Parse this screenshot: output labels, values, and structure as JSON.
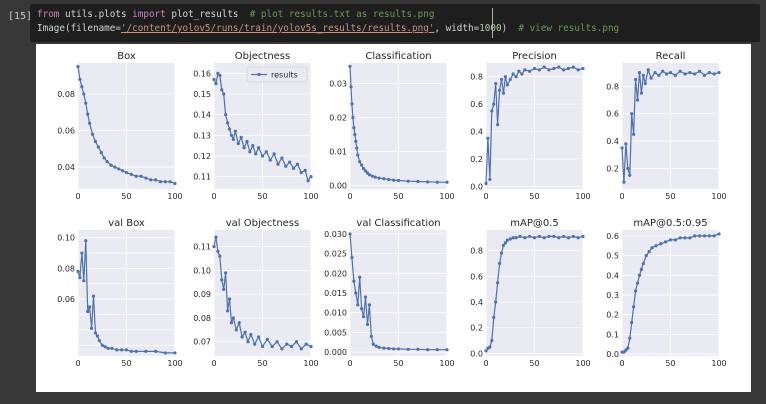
{
  "cell": {
    "prompt": "[15]",
    "line1": {
      "kw1": "from",
      "mod": " utils.plots ",
      "kw2": "import",
      "fn": " plot_results  ",
      "comment": "# plot results.txt as results.png"
    },
    "line2": {
      "pre": "Image(filename=",
      "path": "'/content/yolov5/runs/train/yolov5s_results/results.png'",
      "mid": ", width=",
      "width": "1000",
      "post": ")  ",
      "comment": "# view results.png"
    }
  },
  "colors": {
    "line": "#4c72b0",
    "plot_bg": "#eaeaf2",
    "grid": "#ffffff"
  },
  "legend_label": "results",
  "chart_data": [
    {
      "type": "line",
      "title": "Box",
      "xlim": [
        0,
        100
      ],
      "ylim": [
        0.028,
        0.097
      ],
      "xticks": [
        0,
        50,
        100
      ],
      "yticks": [
        0.04,
        0.06,
        0.08
      ],
      "ytick_labels": [
        "0.04",
        "0.06",
        "0.08"
      ],
      "x": [
        0,
        2,
        4,
        6,
        8,
        10,
        12,
        15,
        18,
        21,
        24,
        27,
        30,
        34,
        38,
        42,
        46,
        50,
        55,
        60,
        65,
        70,
        75,
        80,
        85,
        90,
        95,
        100
      ],
      "y": [
        0.095,
        0.088,
        0.084,
        0.08,
        0.075,
        0.069,
        0.064,
        0.058,
        0.054,
        0.051,
        0.048,
        0.045,
        0.043,
        0.041,
        0.04,
        0.039,
        0.038,
        0.037,
        0.036,
        0.035,
        0.035,
        0.034,
        0.033,
        0.033,
        0.032,
        0.032,
        0.032,
        0.031
      ]
    },
    {
      "type": "line",
      "title": "Objectness",
      "xlim": [
        0,
        100
      ],
      "ylim": [
        0.104,
        0.165
      ],
      "legend": "results",
      "xticks": [
        0,
        50,
        100
      ],
      "yticks": [
        0.11,
        0.12,
        0.13,
        0.14,
        0.15,
        0.16
      ],
      "ytick_labels": [
        "0.11",
        "0.12",
        "0.13",
        "0.14",
        "0.15",
        "0.16"
      ],
      "x": [
        0,
        2,
        4,
        6,
        8,
        10,
        12,
        14,
        16,
        18,
        20,
        22,
        25,
        28,
        31,
        34,
        37,
        40,
        43,
        46,
        50,
        54,
        58,
        62,
        66,
        70,
        74,
        78,
        82,
        86,
        90,
        94,
        97,
        100
      ],
      "y": [
        0.157,
        0.155,
        0.16,
        0.159,
        0.152,
        0.15,
        0.14,
        0.136,
        0.133,
        0.13,
        0.128,
        0.132,
        0.126,
        0.129,
        0.124,
        0.127,
        0.122,
        0.125,
        0.121,
        0.124,
        0.12,
        0.122,
        0.118,
        0.121,
        0.116,
        0.119,
        0.115,
        0.117,
        0.114,
        0.116,
        0.112,
        0.113,
        0.108,
        0.11
      ]
    },
    {
      "type": "line",
      "title": "Classification",
      "xlim": [
        0,
        100
      ],
      "ylim": [
        -0.001,
        0.036
      ],
      "xticks": [
        0,
        50,
        100
      ],
      "yticks": [
        0.0,
        0.01,
        0.02,
        0.03
      ],
      "ytick_labels": [
        "0.00",
        "0.01",
        "0.02",
        "0.03"
      ],
      "x": [
        0,
        1,
        2,
        3,
        4,
        5,
        6,
        7,
        8,
        10,
        12,
        14,
        16,
        18,
        20,
        23,
        26,
        30,
        35,
        40,
        45,
        50,
        60,
        70,
        80,
        90,
        100
      ],
      "y": [
        0.035,
        0.029,
        0.024,
        0.02,
        0.017,
        0.015,
        0.013,
        0.011,
        0.009,
        0.007,
        0.006,
        0.005,
        0.0043,
        0.0037,
        0.0032,
        0.0028,
        0.0025,
        0.0022,
        0.002,
        0.0018,
        0.0016,
        0.0015,
        0.0013,
        0.0012,
        0.0011,
        0.001,
        0.001
      ]
    },
    {
      "type": "line",
      "title": "Precision",
      "xlim": [
        0,
        100
      ],
      "ylim": [
        -0.02,
        0.9
      ],
      "xticks": [
        0,
        50,
        100
      ],
      "yticks": [
        0.0,
        0.2,
        0.4,
        0.6,
        0.8
      ],
      "ytick_labels": [
        "0.0",
        "0.2",
        "0.4",
        "0.6",
        "0.8"
      ],
      "x": [
        0,
        2,
        4,
        6,
        8,
        10,
        12,
        14,
        16,
        18,
        20,
        22,
        25,
        28,
        31,
        34,
        37,
        40,
        45,
        50,
        55,
        60,
        65,
        70,
        75,
        80,
        85,
        90,
        95,
        100
      ],
      "y": [
        0.02,
        0.35,
        0.05,
        0.55,
        0.6,
        0.75,
        0.45,
        0.7,
        0.78,
        0.68,
        0.8,
        0.74,
        0.78,
        0.82,
        0.8,
        0.84,
        0.82,
        0.85,
        0.84,
        0.86,
        0.85,
        0.87,
        0.85,
        0.86,
        0.87,
        0.85,
        0.86,
        0.87,
        0.85,
        0.86
      ]
    },
    {
      "type": "line",
      "title": "Recall",
      "xlim": [
        0,
        100
      ],
      "ylim": [
        0.05,
        0.97
      ],
      "xticks": [
        0,
        50,
        100
      ],
      "yticks": [
        0.2,
        0.4,
        0.6,
        0.8
      ],
      "ytick_labels": [
        "0.2",
        "0.4",
        "0.6",
        "0.8"
      ],
      "x": [
        0,
        2,
        4,
        6,
        8,
        10,
        12,
        14,
        16,
        18,
        20,
        22,
        24,
        27,
        30,
        34,
        38,
        42,
        46,
        50,
        55,
        60,
        65,
        70,
        75,
        80,
        85,
        90,
        95,
        100
      ],
      "y": [
        0.35,
        0.1,
        0.38,
        0.2,
        0.15,
        0.6,
        0.45,
        0.85,
        0.7,
        0.9,
        0.75,
        0.88,
        0.82,
        0.92,
        0.86,
        0.9,
        0.88,
        0.91,
        0.89,
        0.9,
        0.88,
        0.91,
        0.89,
        0.9,
        0.89,
        0.91,
        0.88,
        0.9,
        0.89,
        0.9
      ]
    },
    {
      "type": "line",
      "title": "val Box",
      "xlim": [
        0,
        100
      ],
      "ylim": [
        0.023,
        0.105
      ],
      "xticks": [
        0,
        50,
        100
      ],
      "yticks": [
        0.03,
        0.04,
        0.05,
        0.06,
        0.07,
        0.08,
        0.09,
        0.1
      ],
      "ytick_labels": [
        "",
        "",
        "",
        "0.06",
        "",
        "0.08",
        "",
        "0.10"
      ],
      "x": [
        0,
        2,
        4,
        6,
        8,
        10,
        12,
        14,
        16,
        18,
        20,
        22,
        25,
        28,
        31,
        35,
        40,
        45,
        50,
        55,
        60,
        70,
        80,
        90,
        100
      ],
      "y": [
        0.078,
        0.074,
        0.09,
        0.072,
        0.098,
        0.052,
        0.055,
        0.041,
        0.062,
        0.038,
        0.036,
        0.033,
        0.03,
        0.029,
        0.028,
        0.028,
        0.027,
        0.027,
        0.027,
        0.026,
        0.026,
        0.026,
        0.026,
        0.025,
        0.025
      ]
    },
    {
      "type": "line",
      "title": "val Objectness",
      "xlim": [
        0,
        100
      ],
      "ylim": [
        0.064,
        0.117
      ],
      "xticks": [
        0,
        50,
        100
      ],
      "yticks": [
        0.07,
        0.08,
        0.09,
        0.1,
        0.11
      ],
      "ytick_labels": [
        "0.07",
        "0.08",
        "0.09",
        "0.10",
        "0.11"
      ],
      "x": [
        0,
        2,
        4,
        6,
        8,
        10,
        12,
        14,
        16,
        18,
        20,
        23,
        26,
        29,
        32,
        35,
        38,
        42,
        46,
        50,
        55,
        60,
        65,
        70,
        75,
        80,
        85,
        90,
        95,
        100
      ],
      "y": [
        0.11,
        0.114,
        0.108,
        0.106,
        0.096,
        0.092,
        0.099,
        0.083,
        0.088,
        0.078,
        0.08,
        0.075,
        0.078,
        0.072,
        0.074,
        0.07,
        0.073,
        0.069,
        0.072,
        0.068,
        0.071,
        0.068,
        0.07,
        0.067,
        0.069,
        0.068,
        0.07,
        0.067,
        0.069,
        0.068
      ]
    },
    {
      "type": "line",
      "title": "val Classification",
      "xlim": [
        0,
        100
      ],
      "ylim": [
        -0.001,
        0.031
      ],
      "xticks": [
        0,
        50,
        100
      ],
      "yticks": [
        0.0,
        0.005,
        0.01,
        0.015,
        0.02,
        0.025,
        0.03
      ],
      "ytick_labels": [
        "0.000",
        "0.005",
        "0.010",
        "0.015",
        "0.020",
        "0.025",
        "0.030"
      ],
      "x": [
        0,
        2,
        4,
        6,
        8,
        10,
        12,
        14,
        16,
        18,
        20,
        22,
        24,
        27,
        30,
        35,
        40,
        45,
        50,
        60,
        70,
        80,
        90,
        100
      ],
      "y": [
        0.03,
        0.024,
        0.018,
        0.015,
        0.012,
        0.019,
        0.011,
        0.009,
        0.014,
        0.007,
        0.012,
        0.004,
        0.002,
        0.0015,
        0.0012,
        0.001,
        0.0009,
        0.0008,
        0.0008,
        0.0007,
        0.0007,
        0.0006,
        0.0006,
        0.0006
      ]
    },
    {
      "type": "line",
      "title": "mAP@0.5",
      "xlim": [
        0,
        100
      ],
      "ylim": [
        -0.02,
        0.96
      ],
      "xticks": [
        0,
        50,
        100
      ],
      "yticks": [
        0.0,
        0.2,
        0.4,
        0.6,
        0.8
      ],
      "ytick_labels": [
        "0.0",
        "0.2",
        "0.4",
        "0.6",
        "0.8"
      ],
      "x": [
        0,
        2,
        4,
        6,
        8,
        10,
        12,
        14,
        16,
        18,
        20,
        22,
        25,
        28,
        31,
        35,
        40,
        45,
        50,
        55,
        60,
        65,
        70,
        75,
        80,
        85,
        90,
        95,
        100
      ],
      "y": [
        0.02,
        0.04,
        0.05,
        0.1,
        0.28,
        0.4,
        0.55,
        0.7,
        0.78,
        0.84,
        0.86,
        0.88,
        0.89,
        0.9,
        0.9,
        0.91,
        0.9,
        0.91,
        0.9,
        0.91,
        0.9,
        0.91,
        0.91,
        0.9,
        0.91,
        0.9,
        0.91,
        0.9,
        0.91
      ]
    },
    {
      "type": "line",
      "title": "mAP@0.5:0.95",
      "xlim": [
        0,
        100
      ],
      "ylim": [
        -0.01,
        0.63
      ],
      "xticks": [
        0,
        50,
        100
      ],
      "yticks": [
        0.0,
        0.1,
        0.2,
        0.3,
        0.4,
        0.5,
        0.6
      ],
      "ytick_labels": [
        "0.0",
        "0.1",
        "0.2",
        "0.3",
        "0.4",
        "0.5",
        "0.6"
      ],
      "x": [
        0,
        2,
        4,
        6,
        8,
        10,
        12,
        14,
        16,
        18,
        20,
        22,
        25,
        28,
        31,
        35,
        40,
        45,
        50,
        55,
        60,
        65,
        70,
        75,
        80,
        85,
        90,
        95,
        100
      ],
      "y": [
        0.01,
        0.01,
        0.02,
        0.03,
        0.08,
        0.16,
        0.24,
        0.32,
        0.36,
        0.4,
        0.43,
        0.46,
        0.5,
        0.52,
        0.54,
        0.55,
        0.56,
        0.57,
        0.58,
        0.58,
        0.59,
        0.59,
        0.59,
        0.6,
        0.6,
        0.6,
        0.6,
        0.6,
        0.61
      ]
    }
  ]
}
